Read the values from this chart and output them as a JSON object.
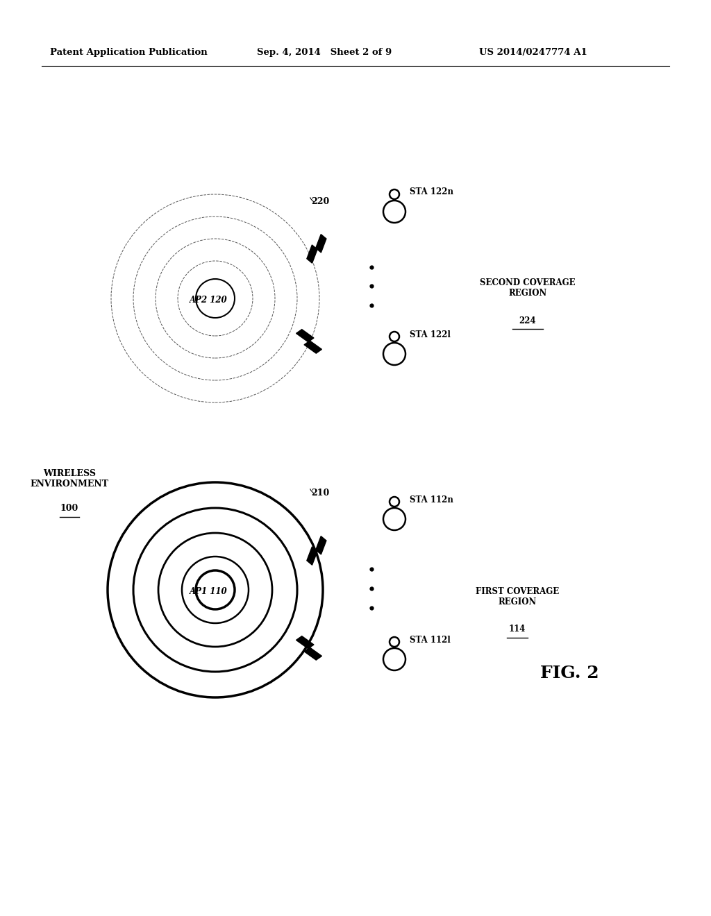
{
  "header_left": "Patent Application Publication",
  "header_center": "Sep. 4, 2014   Sheet 2 of 9",
  "header_right": "US 2014/0247774 A1",
  "fig_label": "FIG. 2",
  "wireless_env_label": "WIRELESS\nENVIRONMENT",
  "wireless_env_ref": "100",
  "ap1_label": "AP1 110",
  "ap1_ref": "210",
  "ap2_label": "AP2 120",
  "ap2_ref": "220",
  "sta_112n_label": "STA 112n",
  "sta_112l_label": "STA 112l",
  "sta_122n_label": "STA 122n",
  "sta_122l_label": "STA 122l",
  "first_coverage_label": "FIRST COVERAGE\nREGION",
  "first_coverage_ref": "114",
  "second_coverage_label": "SECOND COVERAGE\nREGION",
  "second_coverage_ref": "224",
  "bg_color": "#ffffff",
  "line_color": "#000000"
}
